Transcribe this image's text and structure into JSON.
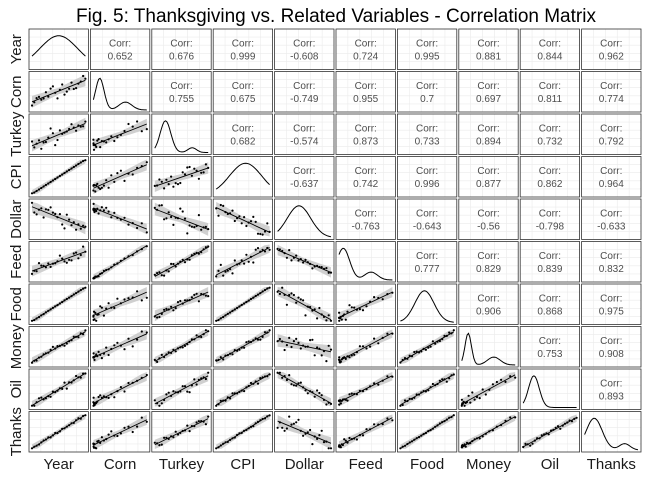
{
  "chart_data": {
    "type": "scatter-matrix",
    "title": "Fig. 5: Thanksgiving vs. Related Variables - Correlation Matrix",
    "variables": [
      "Year",
      "Corn",
      "Turkey",
      "CPI",
      "Dollar",
      "Feed",
      "Food",
      "Money",
      "Oil",
      "Thanks"
    ],
    "corr_label": "Corr:",
    "correlations": [
      {
        "row": 0,
        "col": 1,
        "value": "0.652"
      },
      {
        "row": 0,
        "col": 2,
        "value": "0.676"
      },
      {
        "row": 0,
        "col": 3,
        "value": "0.999"
      },
      {
        "row": 0,
        "col": 4,
        "value": "-0.608"
      },
      {
        "row": 0,
        "col": 5,
        "value": "0.724"
      },
      {
        "row": 0,
        "col": 6,
        "value": "0.995"
      },
      {
        "row": 0,
        "col": 7,
        "value": "0.881"
      },
      {
        "row": 0,
        "col": 8,
        "value": "0.844"
      },
      {
        "row": 0,
        "col": 9,
        "value": "0.962"
      },
      {
        "row": 1,
        "col": 2,
        "value": "0.755"
      },
      {
        "row": 1,
        "col": 3,
        "value": "0.675"
      },
      {
        "row": 1,
        "col": 4,
        "value": "-0.749"
      },
      {
        "row": 1,
        "col": 5,
        "value": "0.955"
      },
      {
        "row": 1,
        "col": 6,
        "value": "0.7"
      },
      {
        "row": 1,
        "col": 7,
        "value": "0.697"
      },
      {
        "row": 1,
        "col": 8,
        "value": "0.811"
      },
      {
        "row": 1,
        "col": 9,
        "value": "0.774"
      },
      {
        "row": 2,
        "col": 3,
        "value": "0.682"
      },
      {
        "row": 2,
        "col": 4,
        "value": "-0.574"
      },
      {
        "row": 2,
        "col": 5,
        "value": "0.873"
      },
      {
        "row": 2,
        "col": 6,
        "value": "0.733"
      },
      {
        "row": 2,
        "col": 7,
        "value": "0.894"
      },
      {
        "row": 2,
        "col": 8,
        "value": "0.732"
      },
      {
        "row": 2,
        "col": 9,
        "value": "0.792"
      },
      {
        "row": 3,
        "col": 4,
        "value": "-0.637"
      },
      {
        "row": 3,
        "col": 5,
        "value": "0.742"
      },
      {
        "row": 3,
        "col": 6,
        "value": "0.996"
      },
      {
        "row": 3,
        "col": 7,
        "value": "0.877"
      },
      {
        "row": 3,
        "col": 8,
        "value": "0.862"
      },
      {
        "row": 3,
        "col": 9,
        "value": "0.964"
      },
      {
        "row": 4,
        "col": 5,
        "value": "-0.763"
      },
      {
        "row": 4,
        "col": 6,
        "value": "-0.643"
      },
      {
        "row": 4,
        "col": 7,
        "value": "-0.56"
      },
      {
        "row": 4,
        "col": 8,
        "value": "-0.798"
      },
      {
        "row": 4,
        "col": 9,
        "value": "-0.633"
      },
      {
        "row": 5,
        "col": 6,
        "value": "0.777"
      },
      {
        "row": 5,
        "col": 7,
        "value": "0.829"
      },
      {
        "row": 5,
        "col": 8,
        "value": "0.839"
      },
      {
        "row": 5,
        "col": 9,
        "value": "0.832"
      },
      {
        "row": 6,
        "col": 7,
        "value": "0.906"
      },
      {
        "row": 6,
        "col": 8,
        "value": "0.868"
      },
      {
        "row": 6,
        "col": 9,
        "value": "0.975"
      },
      {
        "row": 7,
        "col": 8,
        "value": "0.753"
      },
      {
        "row": 7,
        "col": 9,
        "value": "0.908"
      },
      {
        "row": 8,
        "col": 9,
        "value": "0.893"
      }
    ],
    "grid": true,
    "lower_panels": "scatter with linear fit and confidence band",
    "diagonal_panels": "density curve"
  },
  "colors": {
    "background": "#ffffff",
    "panel_border": "#333333",
    "grid_line": "#ebebeb",
    "point": "#000000",
    "fit_line": "#000000",
    "confidence_band": "#c8c8c8",
    "corr_text": "#4d4d4d"
  }
}
